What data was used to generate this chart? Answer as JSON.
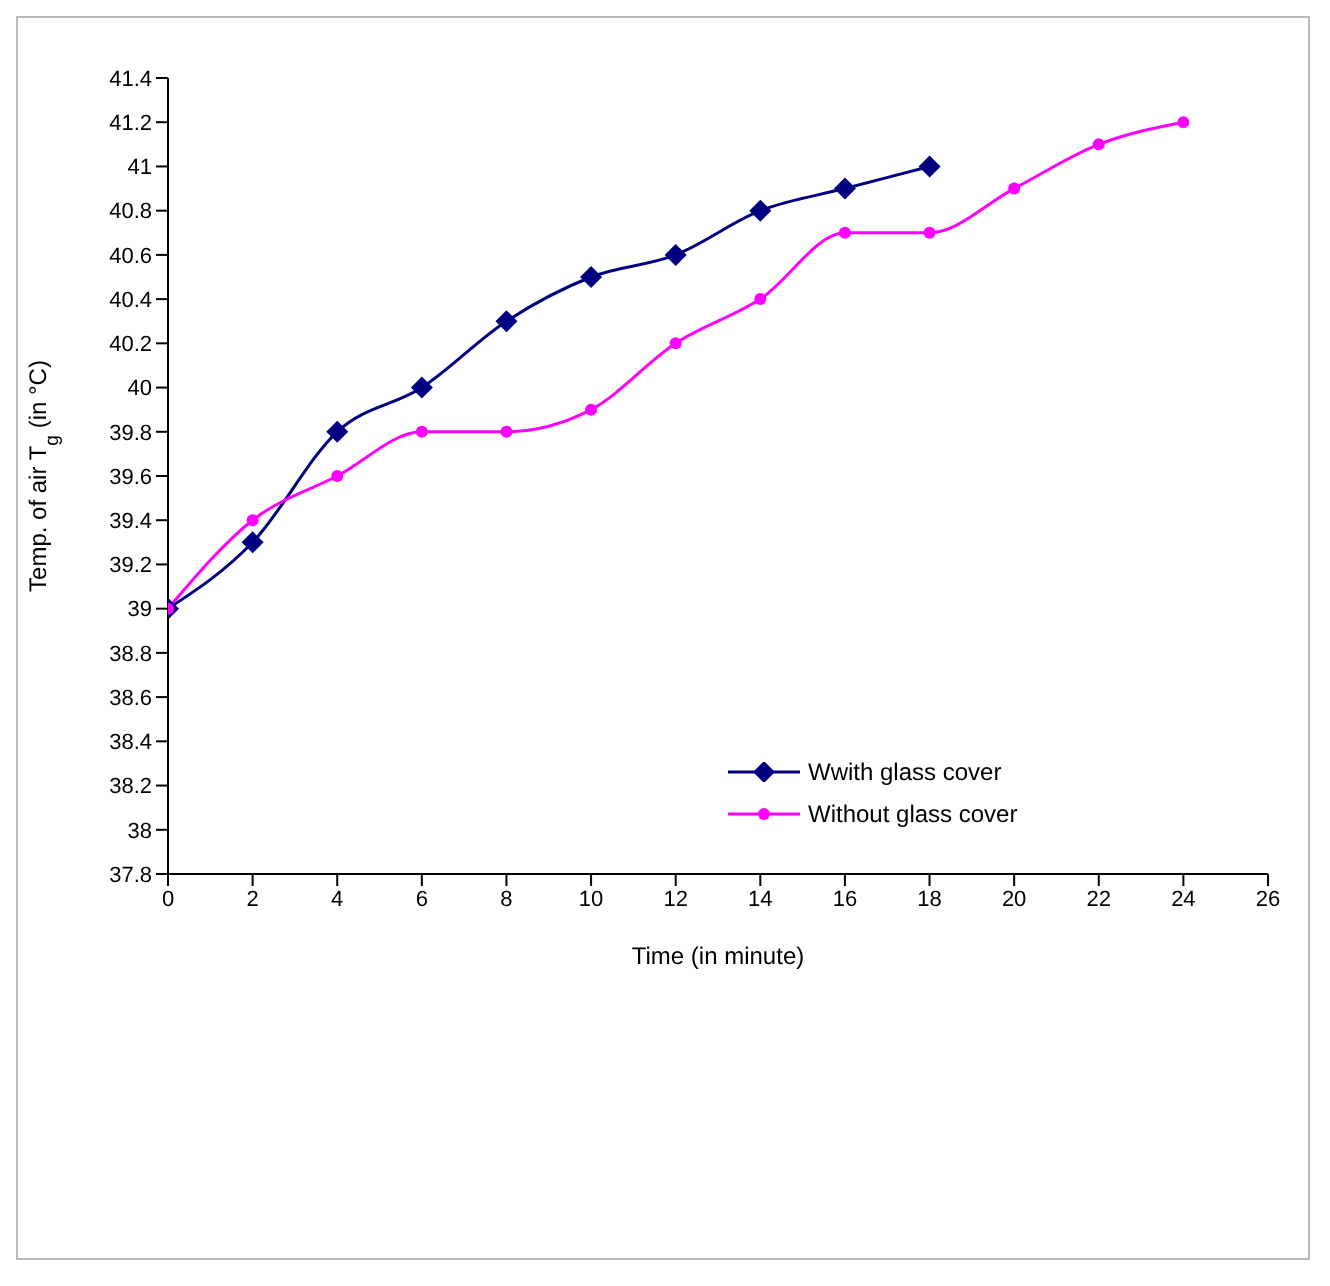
{
  "chart_data": {
    "type": "line",
    "xlabel": "Time (in minute)",
    "ylabel": "Temp. of air T$_{g}$ (in °C)",
    "xlim": [
      0,
      26
    ],
    "xticks": [
      0,
      2,
      4,
      6,
      8,
      10,
      12,
      14,
      16,
      18,
      20,
      22,
      24,
      26
    ],
    "ylim": [
      37.8,
      41.4
    ],
    "yticks": [
      37.8,
      38,
      38.2,
      38.4,
      38.6,
      38.8,
      39,
      39.2,
      39.4,
      39.6,
      39.8,
      40,
      40.2,
      40.4,
      40.6,
      40.8,
      41,
      41.2,
      41.4
    ],
    "grid": false,
    "legend": "right",
    "series": [
      {
        "name": "Wwith glass cover",
        "color": "#000080",
        "marker": "diamond",
        "x": [
          0,
          2,
          4,
          6,
          8,
          10,
          12,
          14,
          16,
          18
        ],
        "values": [
          39,
          39.3,
          39.8,
          40,
          40.3,
          40.5,
          40.6,
          40.8,
          40.9,
          41
        ]
      },
      {
        "name": "Without glass cover",
        "color": "#ff00ff",
        "marker": "circle",
        "x": [
          0,
          2,
          4,
          6,
          8,
          10,
          12,
          14,
          16,
          18,
          20,
          22,
          24
        ],
        "values": [
          39,
          39.4,
          39.6,
          39.8,
          39.8,
          39.9,
          40.2,
          40.4,
          40.7,
          40.7,
          40.9,
          41.1,
          41.2
        ]
      }
    ]
  }
}
